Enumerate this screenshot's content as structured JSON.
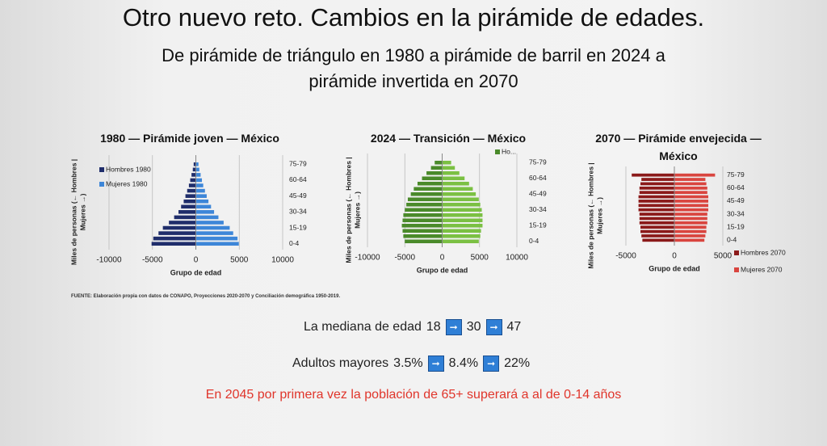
{
  "header": {
    "title": "Otro nuevo reto.  Cambios en la pirámide de edades.",
    "subtitle": [
      "De pirámide de triángulo en 1980 a pirámide de barril  en 2024 a",
      "pirámide invertida en 2070"
    ]
  },
  "chart_data": [
    {
      "type": "pyramid",
      "title": "1980 — Pirámide joven — México",
      "ylabel": [
        "Miles de personas (← Hombres |",
        "Mujeres →)"
      ],
      "xlabel": "Grupo de edad",
      "categories": [
        "0-4",
        null,
        null,
        "15-19",
        null,
        null,
        "30-34",
        null,
        null,
        "45-49",
        null,
        null,
        "60-64",
        null,
        null,
        "75-79"
      ],
      "series": [
        {
          "name": "Hombres 1980",
          "color": "#1f2d6b",
          "values": [
            -5100,
            -4900,
            -4300,
            -3800,
            -3100,
            -2500,
            -2000,
            -1700,
            -1400,
            -1200,
            -1000,
            -800,
            -650,
            -500,
            -350,
            -250
          ]
        },
        {
          "name": "Mujeres 1980",
          "color": "#3d86d8",
          "values": [
            4950,
            4800,
            4300,
            3900,
            3200,
            2600,
            2100,
            1750,
            1450,
            1250,
            1050,
            850,
            700,
            550,
            400,
            300
          ]
        }
      ],
      "xlim": [
        -10000,
        10000
      ],
      "xticks": [
        -10000,
        -5000,
        0,
        5000,
        10000
      ],
      "grid": true,
      "legend": "upper left"
    },
    {
      "type": "pyramid",
      "title": "2024 — Transición — México",
      "ylabel": [
        "Miles de personas (← Hombres |",
        "Mujeres →)"
      ],
      "xlabel": "Grupo de edad",
      "categories": [
        "0-4",
        null,
        null,
        "15-19",
        null,
        null,
        "30-34",
        null,
        null,
        "45-49",
        null,
        null,
        "60-64",
        null,
        null,
        "75-79"
      ],
      "series": [
        {
          "name": "Ho...",
          "color": "#4a8a2a",
          "values": [
            -5000,
            -5200,
            -5300,
            -5400,
            -5300,
            -5200,
            -5000,
            -4800,
            -4600,
            -4200,
            -3800,
            -3300,
            -2700,
            -2100,
            -1500,
            -1000
          ]
        },
        {
          "color": "#7bc043",
          "values": [
            4900,
            5100,
            5200,
            5400,
            5400,
            5400,
            5300,
            5100,
            4900,
            4500,
            4100,
            3600,
            3000,
            2300,
            1700,
            1200
          ]
        }
      ],
      "xlim": [
        -10000,
        10000
      ],
      "xticks": [
        -10000,
        -5000,
        0,
        5000,
        10000
      ],
      "grid": true,
      "legend": "upper right"
    },
    {
      "type": "pyramid",
      "title": "2070 — Pirámide envejecida — México",
      "ylabel": [
        "Miles de personas (← Hombres |",
        "Mujeres →)"
      ],
      "xlabel": "Grupo de edad",
      "categories": [
        "0-4",
        null,
        null,
        "15-19",
        null,
        null,
        "30-34",
        null,
        null,
        "45-49",
        null,
        null,
        "60-64",
        null,
        null,
        "75-79"
      ],
      "series": [
        {
          "name": "Hombres 2070",
          "color": "#8b1a1a",
          "values": [
            -3300,
            -3400,
            -3500,
            -3500,
            -3600,
            -3600,
            -3600,
            -3700,
            -3700,
            -3700,
            -3700,
            -3600,
            -3600,
            -3500,
            -3400,
            -4400
          ]
        },
        {
          "name": "Mujeres 2070",
          "color": "#d9453f",
          "values": [
            3100,
            3200,
            3300,
            3300,
            3400,
            3400,
            3400,
            3500,
            3500,
            3500,
            3500,
            3400,
            3400,
            3300,
            3200,
            4200
          ]
        }
      ],
      "xlim": [
        -7500,
        7500
      ],
      "xticks": [
        -5000,
        0,
        5000
      ],
      "grid": true,
      "legend": "lower right"
    }
  ],
  "source": "FUENTE: Elaboración propia con datos de CONAPO, Proyecciones 2020-2070 y Conciliación demográfica 1950-2019.",
  "stats": [
    {
      "label": "La mediana de edad",
      "values": [
        "18",
        "30",
        "47"
      ]
    },
    {
      "label": "Adultos mayores",
      "values": [
        "3.5%",
        "8.4%",
        "22%"
      ]
    }
  ],
  "note": "En 2045 por primera vez la población de 65+ superará a al de 0-14 años"
}
